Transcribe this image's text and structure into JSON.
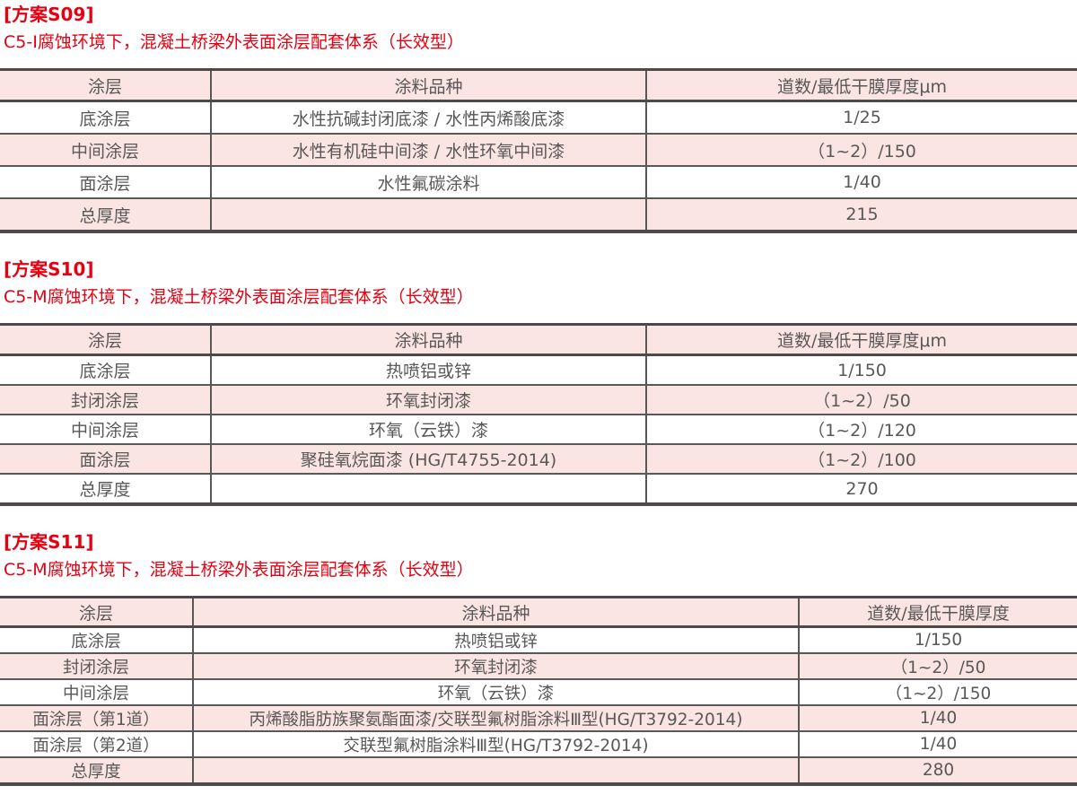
{
  "colors": {
    "accent_red": "#e60012",
    "row_pink": "#fbe5e3",
    "border_dark": "#4c4948",
    "text_gray": "#595757"
  },
  "sections": [
    {
      "title": "[方案S09]",
      "subtitle": "C5-I腐蚀环境下，混凝土桥梁外表面涂层配套体系（长效型）",
      "columns": [
        "涂层",
        "涂料品种",
        "道数/最低干膜厚度μm"
      ],
      "rows": [
        [
          "底涂层",
          "水性抗碱封闭底漆 / 水性丙烯酸底漆",
          "1/25"
        ],
        [
          "中间涂层",
          "水性有机硅中间漆 / 水性环氧中间漆",
          "（1~2）/150"
        ],
        [
          "面涂层",
          "水性氟碳涂料",
          "1/40"
        ],
        [
          "总厚度",
          "",
          "215"
        ]
      ]
    },
    {
      "title": "[方案S10]",
      "subtitle": "C5-M腐蚀环境下，混凝土桥梁外表面涂层配套体系（长效型）",
      "columns": [
        "涂层",
        "涂料品种",
        "道数/最低干膜厚度μm"
      ],
      "rows": [
        [
          "底涂层",
          "热喷铝或锌",
          "1/150"
        ],
        [
          "封闭涂层",
          "环氧封闭漆",
          "（1~2）/50"
        ],
        [
          "中间涂层",
          "环氧（云铁）漆",
          "（1~2）/120"
        ],
        [
          "面涂层",
          "聚硅氧烷面漆 (HG/T4755-2014)",
          "（1~2）/100"
        ],
        [
          "总厚度",
          "",
          "270"
        ]
      ]
    },
    {
      "title": "[方案S11]",
      "subtitle": "C5-M腐蚀环境下，混凝土桥梁外表面涂层配套体系（长效型）",
      "columns": [
        "涂层",
        "涂料品种",
        "道数/最低干膜厚度"
      ],
      "rows": [
        [
          "底涂层",
          "热喷铝或锌",
          "1/150"
        ],
        [
          "封闭涂层",
          "环氧封闭漆",
          "（1~2）/50"
        ],
        [
          "中间涂层",
          "环氧（云铁）漆",
          "（1~2）/150"
        ],
        [
          "面涂层（第1道）",
          "丙烯酸脂肪族聚氨酯面漆/交联型氟树脂涂料Ⅲ型(HG/T3792-2014)",
          "1/40"
        ],
        [
          "面涂层（第2道）",
          "交联型氟树脂涂料Ⅲ型(HG/T3792-2014)",
          "1/40"
        ],
        [
          "总厚度",
          "",
          "280"
        ]
      ]
    }
  ]
}
